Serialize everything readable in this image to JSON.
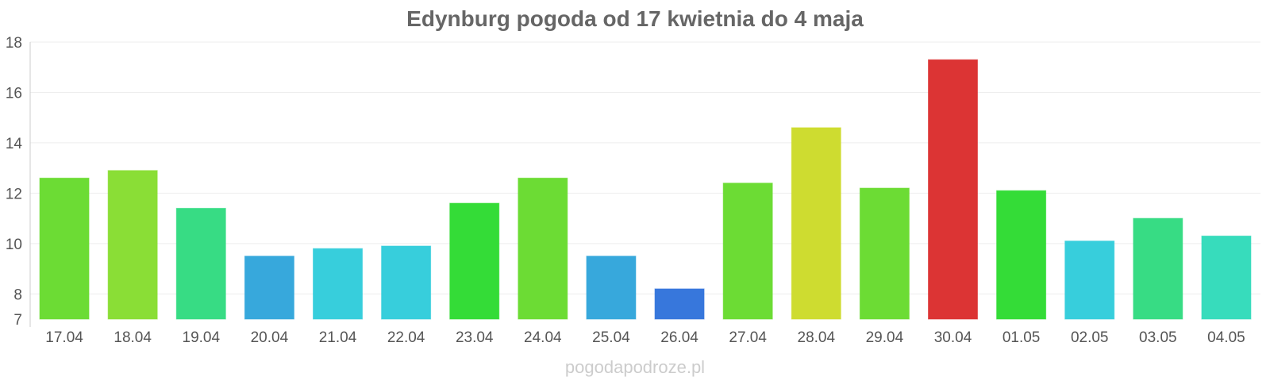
{
  "chart_data": {
    "type": "bar",
    "title": "Edynburg pogoda od 17 kwietnia do 4 maja",
    "xlabel": "",
    "ylabel": "",
    "ylim": [
      7,
      18
    ],
    "yticks": [
      7,
      8,
      10,
      12,
      14,
      16,
      18
    ],
    "grid": true,
    "categories": [
      "17.04",
      "18.04",
      "19.04",
      "20.04",
      "21.04",
      "22.04",
      "23.04",
      "24.04",
      "25.04",
      "26.04",
      "27.04",
      "28.04",
      "29.04",
      "30.04",
      "01.05",
      "02.05",
      "03.05",
      "04.05"
    ],
    "values": [
      12.6,
      12.9,
      11.4,
      9.5,
      9.8,
      9.9,
      11.6,
      12.6,
      9.5,
      8.2,
      12.4,
      14.6,
      12.2,
      17.3,
      12.1,
      10.1,
      11.0,
      10.3
    ],
    "colors": [
      "#6cdc34",
      "#8ade36",
      "#37dc84",
      "#37a8dc",
      "#37cedc",
      "#37cedc",
      "#34dc37",
      "#6cdc34",
      "#37a8dc",
      "#3777dc",
      "#6cdc34",
      "#cedc30",
      "#6cdc34",
      "#dc3434",
      "#34dc37",
      "#37cedc",
      "#37dc84",
      "#37dcbc"
    ]
  },
  "footer": {
    "text": "pogodapodroze.pl"
  }
}
